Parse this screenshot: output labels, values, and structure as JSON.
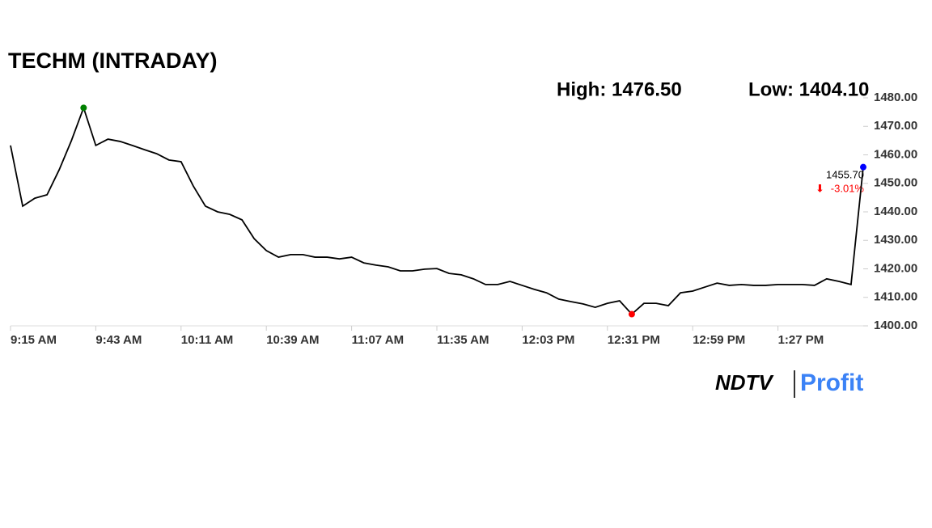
{
  "chart_data": {
    "type": "line",
    "title": "TECHM (INTRADAY)",
    "high_text": "High: 1476.50",
    "low_text": "Low: 1404.10",
    "last_price": "1455.70",
    "change": "-3.01%",
    "logo": {
      "left": "NDTV",
      "right": "Profit"
    },
    "categories": [
      "9:15 AM",
      null,
      null,
      null,
      null,
      null,
      null,
      "9:43 AM",
      null,
      null,
      null,
      null,
      null,
      null,
      "10:11 AM",
      null,
      null,
      null,
      null,
      null,
      null,
      "10:39 AM",
      null,
      null,
      null,
      null,
      null,
      null,
      "11:07 AM",
      null,
      null,
      null,
      null,
      null,
      null,
      "11:35 AM",
      null,
      null,
      null,
      null,
      null,
      null,
      "12:03 PM",
      null,
      null,
      null,
      null,
      null,
      null,
      "12:31 PM",
      null,
      null,
      null,
      null,
      null,
      null,
      "12:59 PM",
      null,
      null,
      null,
      null,
      null,
      null,
      "1:27 PM",
      null,
      null,
      null,
      null,
      null,
      null,
      null
    ],
    "series": [
      {
        "name": "TECHM",
        "color": "#000000",
        "values": [
          1463.3,
          1442,
          1444.8,
          1446,
          1454.8,
          1465,
          1476.5,
          1463.3,
          1465.5,
          1464.7,
          1463.3,
          1461.8,
          1460.4,
          1458.2,
          1457.6,
          1449.1,
          1442,
          1440,
          1439.1,
          1437.2,
          1430.6,
          1426.4,
          1424.1,
          1425,
          1425,
          1424.1,
          1424.1,
          1423.5,
          1424.1,
          1422.1,
          1421.3,
          1420.7,
          1419.3,
          1419.3,
          1419.9,
          1420.1,
          1418.4,
          1417.9,
          1416.5,
          1414.5,
          1414.5,
          1415.6,
          1414.2,
          1412.8,
          1411.6,
          1409.4,
          1408.5,
          1407.7,
          1406.5,
          1407.9,
          1408.8,
          1404.1,
          1407.9,
          1407.9,
          1407.1,
          1411.6,
          1412.2,
          1413.6,
          1415,
          1414.2,
          1414.5,
          1414.2,
          1414.2,
          1414.5,
          1414.5,
          1414.5,
          1414.2,
          1416.5,
          1415.6,
          1414.5,
          1455.7
        ]
      }
    ],
    "ylim": [
      1400,
      1480
    ],
    "yticks": [
      {
        "value": 1400,
        "label": "1400.00"
      },
      {
        "value": 1410,
        "label": "1410.00"
      },
      {
        "value": 1420,
        "label": "1420.00"
      },
      {
        "value": 1430,
        "label": "1430.00"
      },
      {
        "value": 1440,
        "label": "1440.00"
      },
      {
        "value": 1450,
        "label": "1450.00"
      },
      {
        "value": 1460,
        "label": "1460.00"
      },
      {
        "value": 1470,
        "label": "1470.00"
      },
      {
        "value": 1480,
        "label": "1480.00"
      }
    ],
    "markers": {
      "high": {
        "index": 6,
        "color": "#008000"
      },
      "low": {
        "index": 51,
        "color": "#ff0000"
      },
      "last": {
        "index": 70,
        "color": "#0000ff"
      }
    },
    "change_color": "#ff0000"
  }
}
